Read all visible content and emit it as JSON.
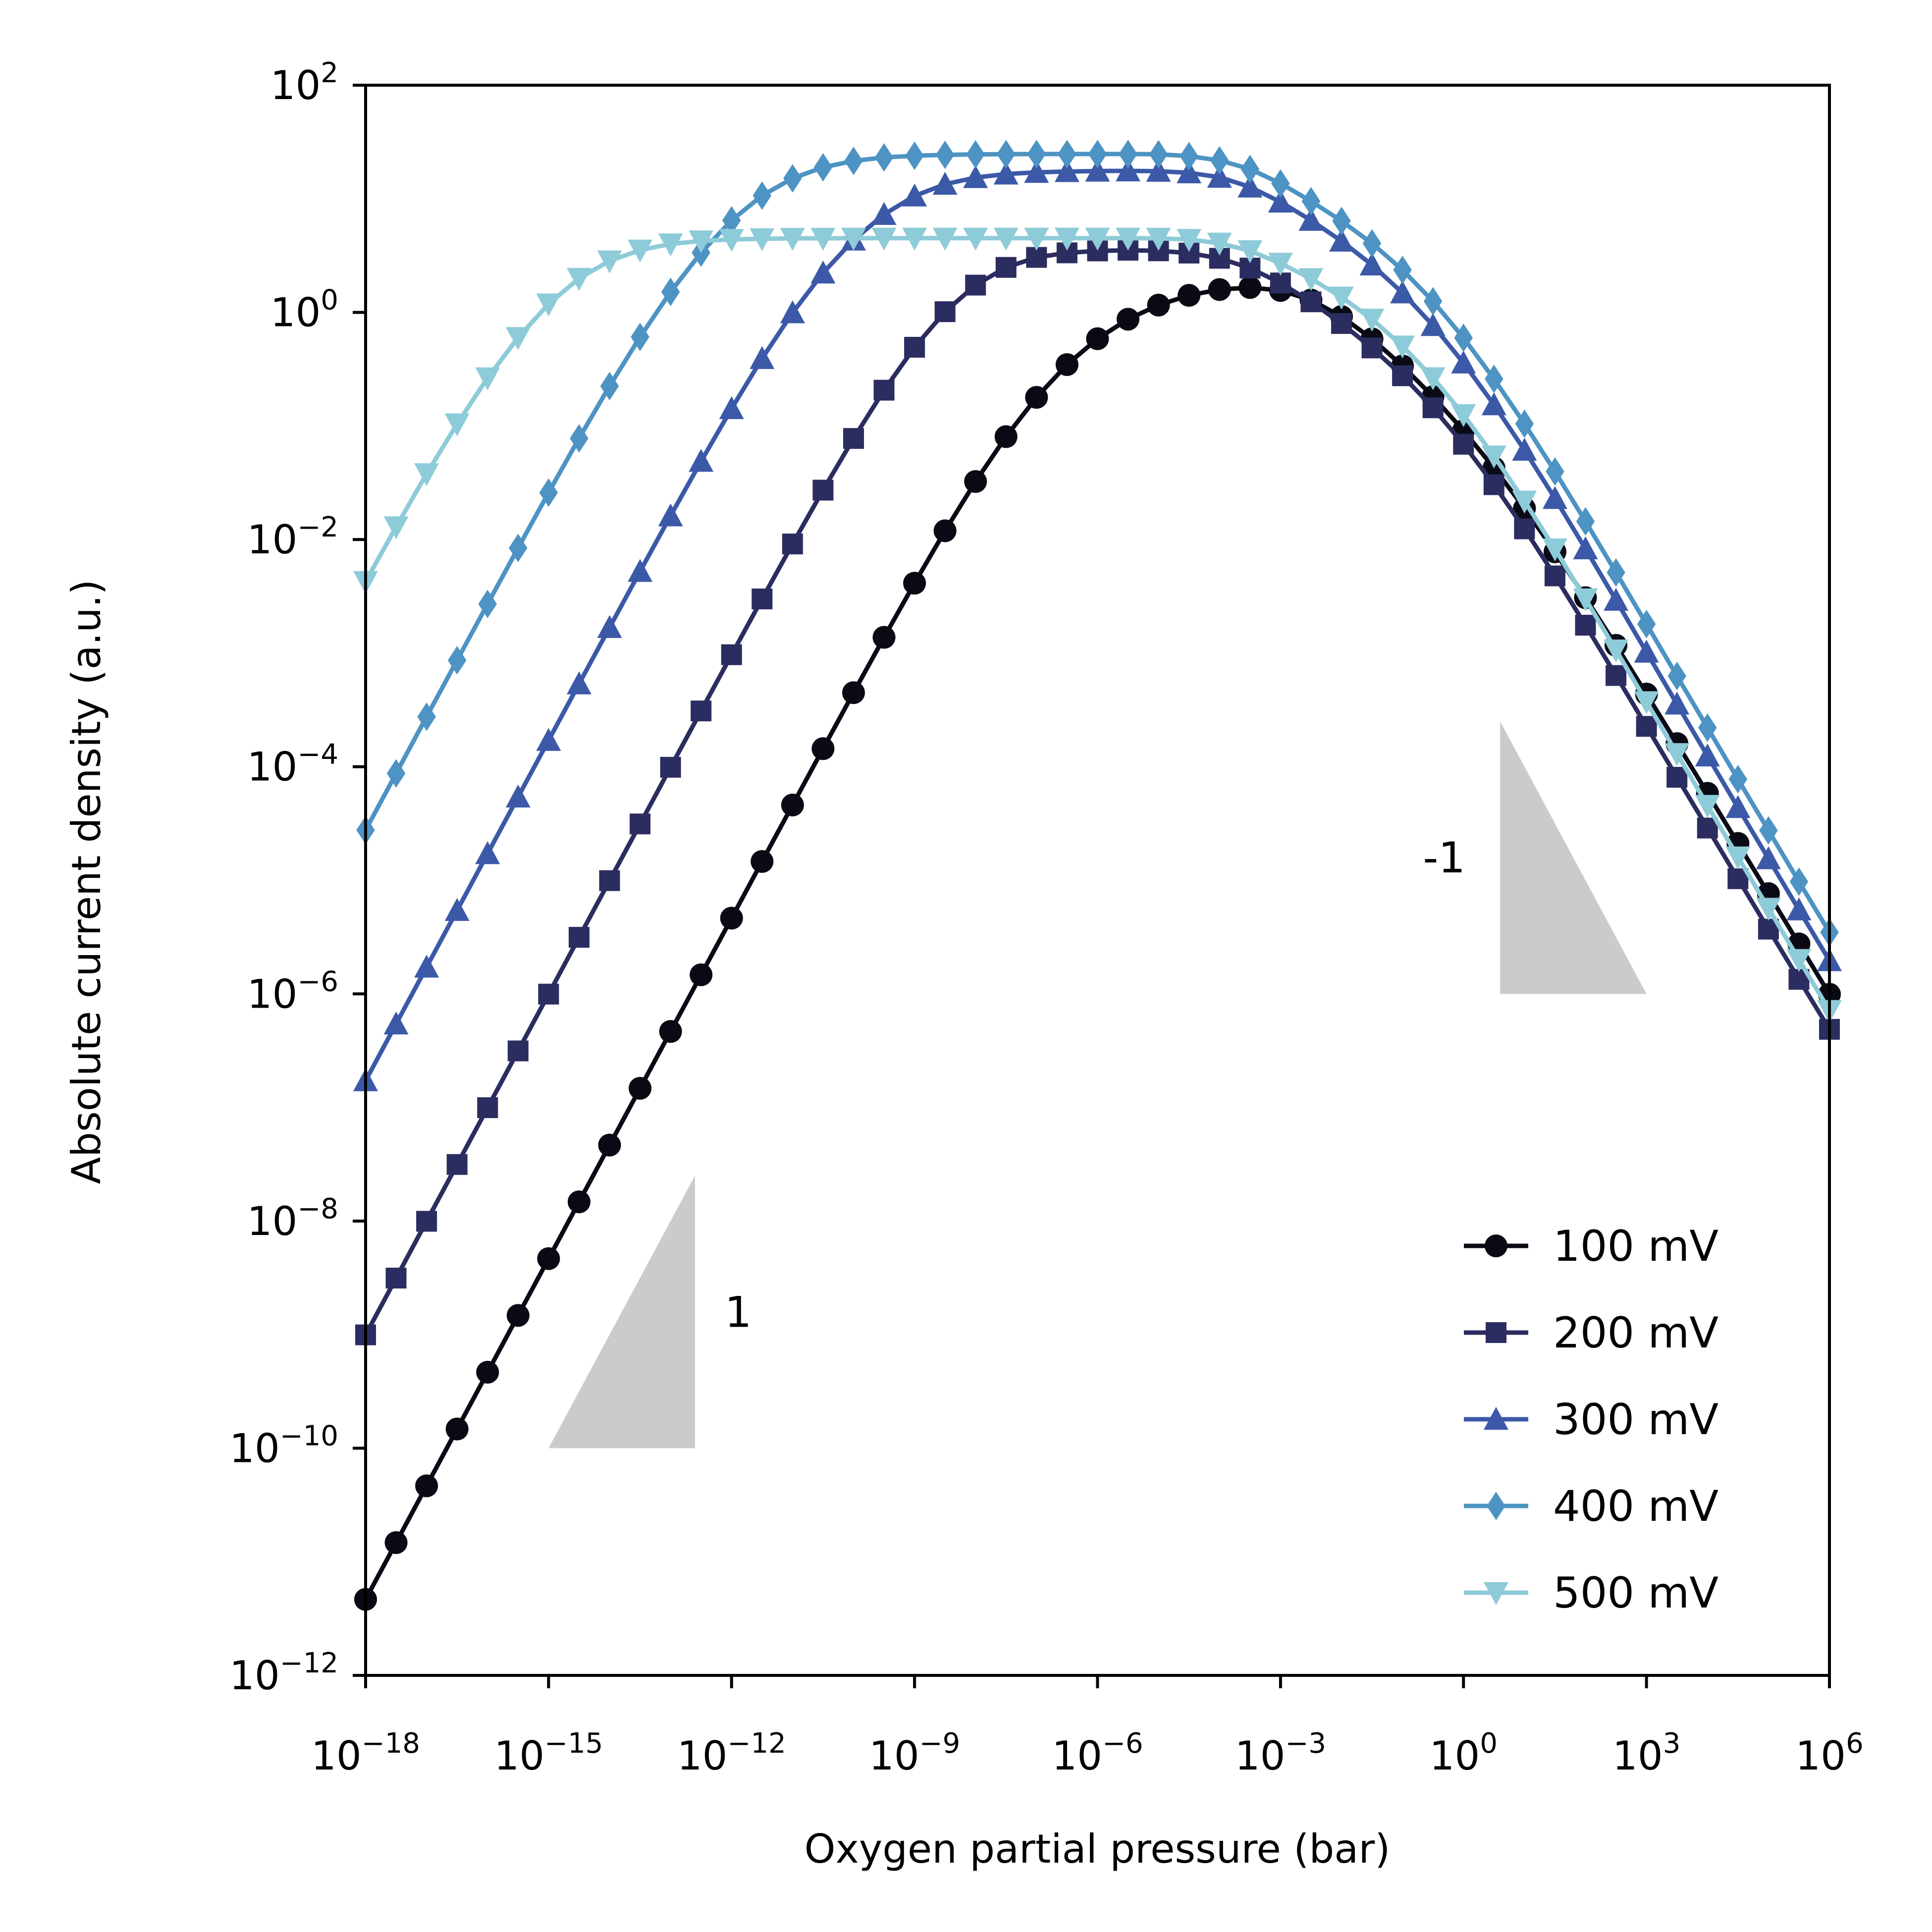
{
  "chart_data": {
    "type": "line",
    "xlabel": "Oxygen partial pressure (bar)",
    "ylabel": "Absolute current density (a.u.)",
    "xscale": "log",
    "yscale": "log",
    "xlim": [
      1e-18,
      1000000.0
    ],
    "ylim": [
      1e-12,
      100.0
    ],
    "x_ticks": [
      {
        "base": "10",
        "exp": "−18",
        "value": 1e-18
      },
      {
        "base": "10",
        "exp": "−15",
        "value": 1e-15
      },
      {
        "base": "10",
        "exp": "−12",
        "value": 1e-12
      },
      {
        "base": "10",
        "exp": "−9",
        "value": 1e-09
      },
      {
        "base": "10",
        "exp": "−6",
        "value": 1e-06
      },
      {
        "base": "10",
        "exp": "−3",
        "value": 0.001
      },
      {
        "base": "10",
        "exp": "0",
        "value": 1
      },
      {
        "base": "10",
        "exp": "3",
        "value": 1000.0
      },
      {
        "base": "10",
        "exp": "6",
        "value": 1000000.0
      }
    ],
    "y_ticks": [
      {
        "base": "10",
        "exp": "−12",
        "value": 1e-12
      },
      {
        "base": "10",
        "exp": "−10",
        "value": 1e-10
      },
      {
        "base": "10",
        "exp": "−8",
        "value": 1e-08
      },
      {
        "base": "10",
        "exp": "−6",
        "value": 1e-06
      },
      {
        "base": "10",
        "exp": "−4",
        "value": 0.0001
      },
      {
        "base": "10",
        "exp": "−2",
        "value": 0.01
      },
      {
        "base": "10",
        "exp": "0",
        "value": 1
      },
      {
        "base": "10",
        "exp": "2",
        "value": 100.0
      }
    ],
    "grid": false,
    "legend_position": "lower-right",
    "series": [
      {
        "name": "100 mV",
        "color": "#0a0a14",
        "marker": "circle",
        "x_log10": [
          -18.0,
          -17.5,
          -17.0,
          -16.5,
          -16.0,
          -15.5,
          -15.0,
          -14.5,
          -14.0,
          -13.5,
          -13.0,
          -12.5,
          -12.0,
          -11.5,
          -11.0,
          -10.5,
          -10.0,
          -9.5,
          -9.0,
          -8.5,
          -8.0,
          -7.5,
          -7.0,
          -6.5,
          -6.0,
          -5.5,
          -5.0,
          -4.5,
          -4.0,
          -3.5,
          -3.0,
          -2.5,
          -2.0,
          -1.5,
          -1.0,
          -0.5,
          0.0,
          0.5,
          1.0,
          1.5,
          2.0,
          2.5,
          3.0,
          3.5,
          4.0,
          4.5,
          5.0,
          5.5,
          6.0
        ],
        "y_log10": [
          -11.331,
          -10.831,
          -10.331,
          -9.831,
          -9.331,
          -8.831,
          -8.331,
          -7.831,
          -7.331,
          -6.831,
          -6.331,
          -5.832,
          -5.333,
          -4.834,
          -4.337,
          -3.841,
          -3.348,
          -2.861,
          -2.384,
          -1.923,
          -1.489,
          -1.094,
          -0.748,
          -0.46,
          -0.232,
          -0.06,
          0.064,
          0.15,
          0.201,
          0.219,
          0.193,
          0.109,
          -0.036,
          -0.233,
          -0.471,
          -0.742,
          -1.041,
          -1.369,
          -1.725,
          -2.108,
          -2.512,
          -2.931,
          -3.36,
          -3.796,
          -4.234,
          -4.675,
          -5.117,
          -5.56,
          -6.003
        ]
      },
      {
        "name": "200 mV",
        "color": "#2b2c5f",
        "marker": "square",
        "x_log10": [
          -18.0,
          -17.5,
          -17.0,
          -16.5,
          -16.0,
          -15.5,
          -15.0,
          -14.5,
          -14.0,
          -13.5,
          -13.0,
          -12.5,
          -12.0,
          -11.5,
          -11.0,
          -10.5,
          -10.0,
          -9.5,
          -9.0,
          -8.5,
          -8.0,
          -7.5,
          -7.0,
          -6.5,
          -6.0,
          -5.5,
          -5.0,
          -4.5,
          -4.0,
          -3.5,
          -3.0,
          -2.5,
          -2.0,
          -1.5,
          -1.0,
          -0.5,
          0.0,
          0.5,
          1.0,
          1.5,
          2.0,
          2.5,
          3.0,
          3.5,
          4.0,
          4.5,
          5.0,
          5.5,
          6.0
        ],
        "y_log10": [
          -9.002,
          -8.502,
          -8.002,
          -7.502,
          -7.002,
          -6.502,
          -6.002,
          -5.502,
          -5.003,
          -4.504,
          -4.005,
          -3.509,
          -3.014,
          -2.523,
          -2.039,
          -1.565,
          -1.11,
          -0.685,
          -0.307,
          0.006,
          0.24,
          0.396,
          0.484,
          0.524,
          0.541,
          0.547,
          0.542,
          0.522,
          0.476,
          0.39,
          0.259,
          0.093,
          -0.098,
          -0.313,
          -0.558,
          -0.84,
          -1.161,
          -1.517,
          -1.906,
          -2.32,
          -2.754,
          -3.197,
          -3.645,
          -4.093,
          -4.54,
          -4.986,
          -5.43,
          -5.872,
          -6.312
        ]
      },
      {
        "name": "300 mV",
        "color": "#3c59a8",
        "marker": "triangle-up",
        "x_log10": [
          -18.0,
          -17.5,
          -17.0,
          -16.5,
          -16.0,
          -15.5,
          -15.0,
          -14.5,
          -14.0,
          -13.5,
          -13.0,
          -12.5,
          -12.0,
          -11.5,
          -11.0,
          -10.5,
          -10.0,
          -9.5,
          -9.0,
          -8.5,
          -8.0,
          -7.5,
          -7.0,
          -6.5,
          -6.0,
          -5.5,
          -5.0,
          -4.5,
          -4.0,
          -3.5,
          -3.0,
          -2.5,
          -2.0,
          -1.5,
          -1.0,
          -0.5,
          0.0,
          0.5,
          1.0,
          1.5,
          2.0,
          2.5,
          3.0,
          3.5,
          4.0,
          4.5,
          5.0,
          5.5,
          6.0
        ],
        "y_log10": [
          -6.764,
          -6.264,
          -5.764,
          -5.265,
          -4.765,
          -4.266,
          -3.768,
          -3.27,
          -2.774,
          -2.28,
          -1.791,
          -1.311,
          -0.847,
          -0.406,
          -0.003,
          0.347,
          0.637,
          0.863,
          1.025,
          1.128,
          1.187,
          1.218,
          1.233,
          1.24,
          1.244,
          1.246,
          1.243,
          1.229,
          1.19,
          1.104,
          0.972,
          0.811,
          0.628,
          0.418,
          0.172,
          -0.115,
          -0.445,
          -0.813,
          -1.213,
          -1.638,
          -2.081,
          -2.534,
          -2.991,
          -3.448,
          -3.905,
          -4.359,
          -4.81,
          -5.26,
          -5.707
        ]
      },
      {
        "name": "400 mV",
        "color": "#4d93c3",
        "marker": "diamond",
        "x_log10": [
          -18.0,
          -17.5,
          -17.0,
          -16.5,
          -16.0,
          -15.5,
          -15.0,
          -14.5,
          -14.0,
          -13.5,
          -13.0,
          -12.5,
          -12.0,
          -11.5,
          -11.0,
          -10.5,
          -10.0,
          -9.5,
          -9.0,
          -8.5,
          -8.0,
          -7.5,
          -7.0,
          -6.5,
          -6.0,
          -5.5,
          -5.0,
          -4.5,
          -4.0,
          -3.5,
          -3.0,
          -2.5,
          -2.0,
          -1.5,
          -1.0,
          -0.5,
          0.0,
          0.5,
          1.0,
          1.5,
          2.0,
          2.5,
          3.0,
          3.5,
          4.0,
          4.5,
          5.0,
          5.5,
          6.0
        ],
        "y_log10": [
          -4.558,
          -4.059,
          -3.56,
          -3.063,
          -2.567,
          -2.074,
          -1.587,
          -1.109,
          -0.649,
          -0.216,
          0.18,
          0.526,
          0.81,
          1.028,
          1.18,
          1.277,
          1.333,
          1.364,
          1.379,
          1.387,
          1.391,
          1.393,
          1.394,
          1.394,
          1.394,
          1.394,
          1.392,
          1.376,
          1.338,
          1.262,
          1.135,
          0.979,
          0.805,
          0.607,
          0.374,
          0.098,
          -0.224,
          -0.586,
          -0.981,
          -1.401,
          -1.84,
          -2.29,
          -2.744,
          -3.201,
          -3.656,
          -4.11,
          -4.561,
          -5.012,
          -5.458
        ]
      },
      {
        "name": "500 mV",
        "color": "#8ecbd8",
        "marker": "triangle-down",
        "x_log10": [
          -18.0,
          -17.5,
          -17.0,
          -16.5,
          -16.0,
          -15.5,
          -15.0,
          -14.5,
          -14.0,
          -13.5,
          -13.0,
          -12.5,
          -12.0,
          -11.5,
          -11.0,
          -10.5,
          -10.0,
          -9.5,
          -9.0,
          -8.5,
          -8.0,
          -7.5,
          -7.0,
          -6.5,
          -6.0,
          -5.5,
          -5.0,
          -4.5,
          -4.0,
          -3.5,
          -3.0,
          -2.5,
          -2.0,
          -1.5,
          -1.0,
          -0.5,
          0.0,
          0.5,
          1.0,
          1.5,
          2.0,
          2.5,
          3.0,
          3.5,
          4.0,
          4.5,
          5.0,
          5.5,
          6.0
        ],
        "y_log10": [
          -2.37,
          -1.888,
          -1.421,
          -0.982,
          -0.577,
          -0.222,
          0.074,
          0.299,
          0.453,
          0.548,
          0.602,
          0.629,
          0.642,
          0.648,
          0.651,
          0.652,
          0.653,
          0.653,
          0.653,
          0.653,
          0.653,
          0.653,
          0.653,
          0.653,
          0.653,
          0.653,
          0.652,
          0.642,
          0.609,
          0.542,
          0.432,
          0.297,
          0.134,
          -0.06,
          -0.297,
          -0.576,
          -0.901,
          -1.265,
          -1.662,
          -2.083,
          -2.523,
          -2.973,
          -3.428,
          -3.885,
          -4.341,
          -4.795,
          -5.247,
          -5.698,
          -6.147
        ]
      }
    ],
    "slope_triangles": [
      {
        "label": "1",
        "x_log10": [
          -15,
          -12.6
        ],
        "y_log10": [
          -10,
          -7.6
        ],
        "orientation": "rising"
      },
      {
        "label": "-1",
        "x_log10": [
          0.6,
          3
        ],
        "y_log10": [
          -3.6,
          -6
        ],
        "orientation": "falling"
      }
    ]
  }
}
